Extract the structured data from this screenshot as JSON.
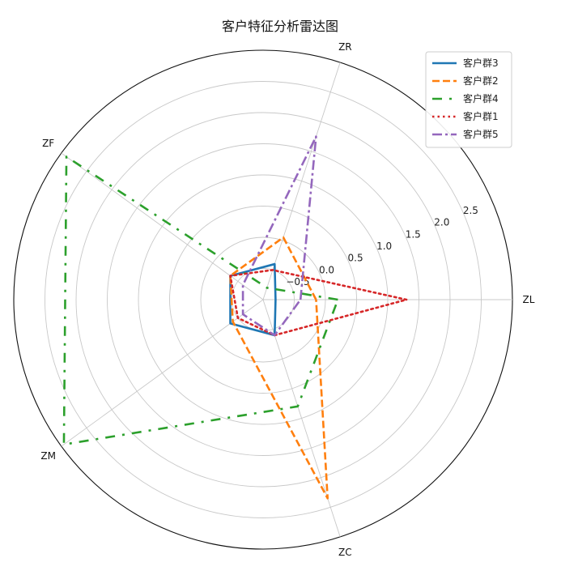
{
  "chart_data": {
    "type": "radar",
    "title": "客户特征分析雷达图",
    "axes": [
      "ZL",
      "ZR",
      "ZF",
      "ZM",
      "ZC"
    ],
    "rlim": [
      -1.0,
      3.0
    ],
    "rticks": [
      -0.5,
      0.0,
      0.5,
      1.0,
      1.5,
      2.0,
      2.5
    ],
    "rtick_labels": [
      "−0.5",
      "0.0",
      "0.5",
      "1.0",
      "1.5",
      "2.0",
      "2.5"
    ],
    "grid": true,
    "legend_position": "top-right",
    "series": [
      {
        "name": "客户群3",
        "color": "#1f77b4",
        "style": "solid",
        "values": [
          -0.8,
          -0.4,
          -0.35,
          -0.35,
          -0.4
        ]
      },
      {
        "name": "客户群2",
        "color": "#ff7f0e",
        "style": "dashed",
        "values": [
          -0.15,
          0.05,
          -0.35,
          -0.4,
          2.35
        ]
      },
      {
        "name": "客户群4",
        "color": "#2ca02c",
        "style": "dashdot_sparse",
        "values": [
          0.2,
          -0.8,
          2.9,
          2.95,
          0.8
        ]
      },
      {
        "name": "客户群1",
        "color": "#d62728",
        "style": "dotted",
        "values": [
          1.3,
          -0.5,
          -0.35,
          -0.5,
          -0.4
        ]
      },
      {
        "name": "客户群5",
        "color": "#9467bd",
        "style": "dashdot",
        "values": [
          -0.4,
          1.75,
          -0.6,
          -0.6,
          -0.4
        ]
      }
    ]
  }
}
